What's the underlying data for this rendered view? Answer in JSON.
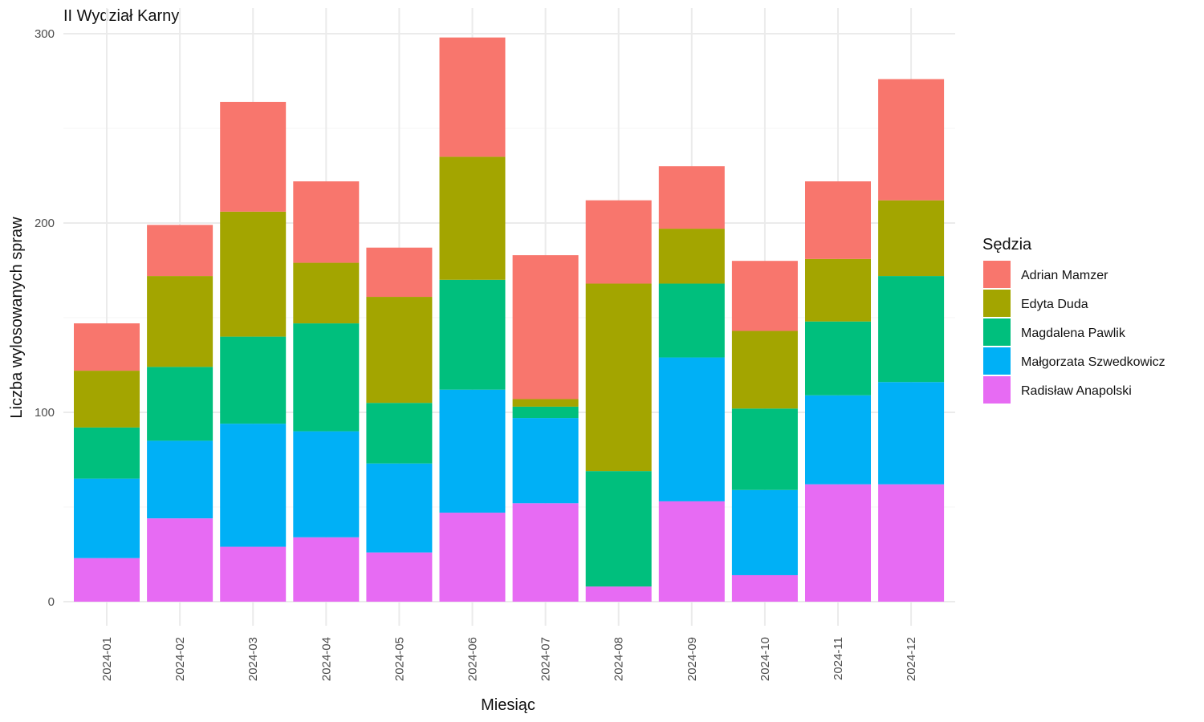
{
  "chart_data": {
    "type": "bar",
    "stacked": true,
    "title": "II Wydział Karny",
    "xlabel": "Miesiąc",
    "ylabel": "Liczba wylosowanych spraw",
    "ylim": [
      0,
      300
    ],
    "yticks": [
      0,
      100,
      200,
      300
    ],
    "grid": true,
    "legend_title": "Sędzia",
    "legend_position": "right",
    "categories": [
      "2024-01",
      "2024-02",
      "2024-03",
      "2024-04",
      "2024-05",
      "2024-06",
      "2024-07",
      "2024-08",
      "2024-09",
      "2024-10",
      "2024-11",
      "2024-12"
    ],
    "series": [
      {
        "name": "Adrian Mamzer",
        "color": "#F8766D",
        "values": [
          25,
          27,
          58,
          43,
          26,
          63,
          76,
          44,
          33,
          37,
          41,
          64
        ]
      },
      {
        "name": "Edyta Duda",
        "color": "#A3A500",
        "values": [
          30,
          48,
          66,
          32,
          56,
          65,
          4,
          99,
          29,
          41,
          33,
          40
        ]
      },
      {
        "name": "Magdalena Pawlik",
        "color": "#00BF7D",
        "values": [
          27,
          39,
          46,
          57,
          32,
          58,
          6,
          61,
          39,
          43,
          39,
          56
        ]
      },
      {
        "name": "Małgorzata Szwedkowicz",
        "color": "#00B0F6",
        "values": [
          42,
          41,
          65,
          56,
          47,
          65,
          45,
          0,
          76,
          45,
          47,
          54
        ]
      },
      {
        "name": "Radisław Anapolski",
        "color": "#E76BF3",
        "values": [
          23,
          44,
          29,
          34,
          26,
          47,
          52,
          8,
          53,
          14,
          62,
          62
        ]
      }
    ]
  }
}
